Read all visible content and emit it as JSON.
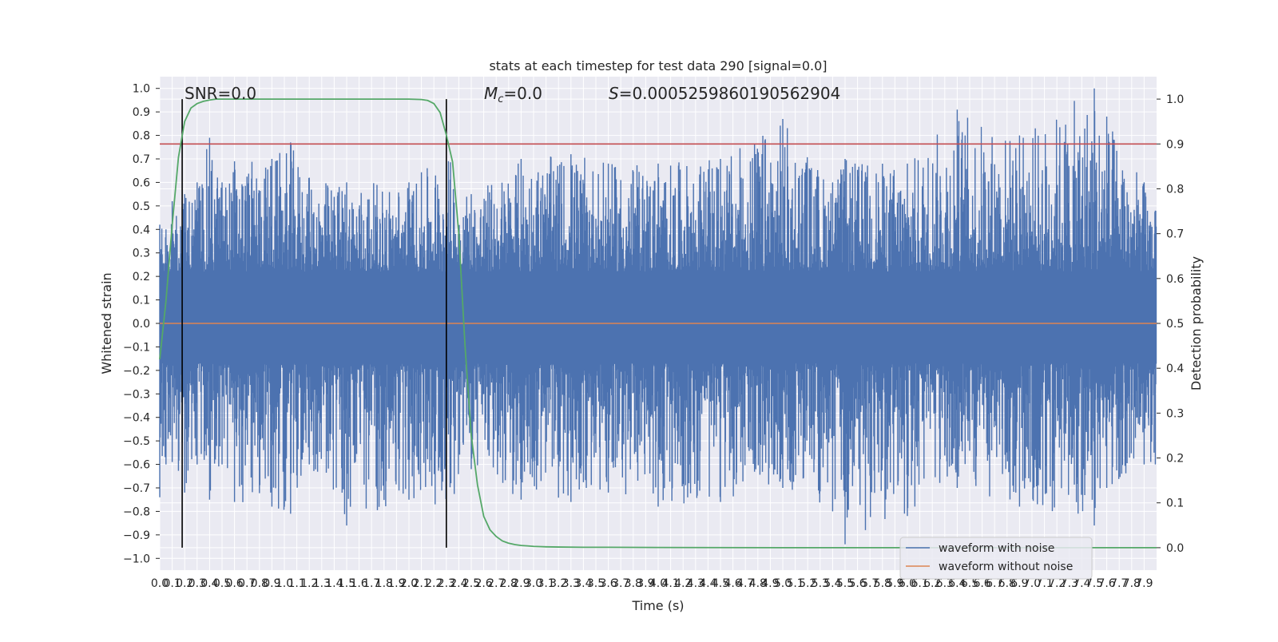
{
  "chart_data": {
    "type": "line",
    "title": "stats at each timestep for test data 290 [signal=0.0]",
    "xlabel": "Time (s)",
    "ylabel": "Whitened strain",
    "ylabel_right": "Detection probability",
    "xlim": [
      0,
      8.0
    ],
    "ylim": [
      -1.05,
      1.05
    ],
    "ylim_right": [
      -0.05,
      1.05
    ],
    "grid": true,
    "legend_position": "lower-right",
    "annotations": {
      "snr": "SNR=0.0",
      "mc_symbol": "M",
      "mc_sub": "c",
      "mc_value": "=0.0",
      "s_symbol": "S",
      "s_value": "=0.0005259860190562904"
    },
    "colors": {
      "noise": "#4c72b0",
      "clean": "#dd8452",
      "prob": "#55a868",
      "threshold": "#c44e52",
      "vline": "#000000"
    },
    "series": [
      {
        "name": "waveform with noise",
        "kind": "noise",
        "envelope": {
          "x": [
            0.0,
            0.05,
            0.1,
            0.2,
            0.3,
            0.4,
            0.5,
            0.6,
            0.9,
            1.05,
            1.2,
            1.5,
            2.0,
            2.3,
            2.5,
            2.9,
            3.3,
            3.6,
            4.0,
            4.5,
            5.0,
            5.4,
            5.5,
            6.0,
            6.4,
            6.9,
            7.5,
            7.6,
            7.9,
            8.0
          ],
          "max": [
            0.42,
            0.4,
            0.52,
            0.55,
            0.6,
            0.79,
            0.6,
            0.69,
            0.7,
            0.77,
            0.62,
            0.6,
            0.6,
            0.73,
            0.55,
            0.7,
            0.72,
            0.68,
            0.68,
            0.7,
            0.87,
            0.6,
            0.7,
            0.68,
            0.91,
            0.8,
            1.0,
            0.88,
            0.6,
            0.48
          ],
          "min": [
            -0.74,
            -0.6,
            -0.59,
            -0.72,
            -0.6,
            -0.75,
            -0.6,
            -0.76,
            -0.78,
            -0.81,
            -0.6,
            -0.86,
            -0.75,
            -0.78,
            -0.62,
            -0.75,
            -0.76,
            -0.72,
            -0.78,
            -0.76,
            -0.7,
            -0.8,
            -0.94,
            -0.82,
            -0.7,
            -0.78,
            -0.86,
            -0.7,
            -0.6,
            -0.6
          ]
        }
      },
      {
        "name": "waveform without noise",
        "kind": "clean",
        "x": [
          0.0,
          8.0
        ],
        "y": [
          0.0,
          0.0
        ]
      },
      {
        "name": "detection probability",
        "kind": "prob",
        "axis": "right",
        "x": [
          0.0,
          0.05,
          0.1,
          0.15,
          0.2,
          0.25,
          0.3,
          0.35,
          0.4,
          0.45,
          0.5,
          0.55,
          0.6,
          0.7,
          0.8,
          1.0,
          1.5,
          2.0,
          2.1,
          2.15,
          2.2,
          2.25,
          2.3,
          2.35,
          2.4,
          2.45,
          2.5,
          2.55,
          2.6,
          2.65,
          2.7,
          2.75,
          2.8,
          2.85,
          2.9,
          2.95,
          3.0,
          3.1,
          3.2,
          3.4,
          3.6,
          4.0,
          5.0,
          6.0,
          7.0,
          8.0
        ],
        "y": [
          0.42,
          0.55,
          0.72,
          0.87,
          0.95,
          0.98,
          0.99,
          0.995,
          0.998,
          1.0,
          1.0,
          1.0,
          1.0,
          1.0,
          1.0,
          1.0,
          1.0,
          1.0,
          0.999,
          0.997,
          0.99,
          0.97,
          0.92,
          0.86,
          0.7,
          0.45,
          0.25,
          0.14,
          0.07,
          0.04,
          0.025,
          0.015,
          0.01,
          0.007,
          0.005,
          0.004,
          0.003,
          0.002,
          0.0015,
          0.001,
          0.001,
          0.0005,
          0.0,
          0.0,
          0.0,
          0.0
        ]
      },
      {
        "name": "threshold",
        "kind": "threshold",
        "axis": "right",
        "x": [
          0.0,
          8.0
        ],
        "y": [
          0.9,
          0.9
        ]
      }
    ],
    "vlines": [
      0.18,
      2.3
    ],
    "vline_range_right": [
      0.0,
      1.0
    ],
    "x_ticks": [
      0.0,
      0.1,
      0.2,
      0.3,
      0.4,
      0.5,
      0.6,
      0.7,
      0.8,
      0.9,
      1.0,
      1.1,
      1.2,
      1.3,
      1.4,
      1.5,
      1.6,
      1.7,
      1.8,
      1.9,
      2.0,
      2.1,
      2.2,
      2.3,
      2.4,
      2.5,
      2.6,
      2.7,
      2.8,
      2.9,
      3.0,
      3.1,
      3.2,
      3.3,
      3.4,
      3.5,
      3.6,
      3.7,
      3.8,
      3.9,
      4.0,
      4.1,
      4.2,
      4.3,
      4.4,
      4.5,
      4.6,
      4.7,
      4.8,
      4.9,
      5.0,
      5.1,
      5.2,
      5.3,
      5.4,
      5.5,
      5.6,
      5.7,
      5.8,
      5.9,
      6.0,
      6.1,
      6.2,
      6.3,
      6.4,
      6.5,
      6.6,
      6.7,
      6.8,
      6.9,
      7.0,
      7.1,
      7.2,
      7.3,
      7.4,
      7.5,
      7.6,
      7.7,
      7.8,
      7.9
    ],
    "x_tick_labels": [
      "0.0",
      "0.1",
      "0.2",
      "0.3",
      "0.4",
      "0.5",
      "0.6",
      "0.7",
      "0.8",
      "0.9",
      "1.0",
      "1.1",
      "1.2",
      "1.3",
      "1.4",
      "1.5",
      "1.6",
      "1.7",
      "1.8",
      "1.9",
      "2.0",
      "2.1",
      "2.2",
      "2.3",
      "2.4",
      "2.5",
      "2.6",
      "2.7",
      "2.8",
      "2.9",
      "3.0",
      "3.1",
      "3.2",
      "3.3",
      "3.4",
      "3.5",
      "3.6",
      "3.7",
      "3.8",
      "3.9",
      "4.0",
      "4.1",
      "4.2",
      "4.3",
      "4.4",
      "4.5",
      "4.6",
      "4.7",
      "4.8",
      "4.9",
      "5.0",
      "5.1",
      "5.2",
      "5.3",
      "5.4",
      "5.5",
      "5.6",
      "5.7",
      "5.8",
      "5.9",
      "6.0",
      "6.1",
      "6.2",
      "6.3",
      "6.4",
      "6.5",
      "6.6",
      "6.7",
      "6.8",
      "6.9",
      "7.0",
      "7.1",
      "7.2",
      "7.3",
      "7.4",
      "7.5",
      "7.6",
      "7.7",
      "7.8",
      "7.9"
    ],
    "y_ticks": [
      1.0,
      0.9,
      0.8,
      0.7,
      0.6,
      0.5,
      0.4,
      0.3,
      0.2,
      0.1,
      0.0,
      -0.1,
      -0.2,
      -0.3,
      -0.4,
      -0.5,
      -0.6,
      -0.7,
      -0.8,
      -0.9,
      -1.0
    ],
    "y_tick_labels": [
      "1.0",
      "0.9",
      "0.8",
      "0.7",
      "0.6",
      "0.5",
      "0.4",
      "0.3",
      "0.2",
      "0.1",
      "0.0",
      "−0.1",
      "−0.2",
      "−0.3",
      "−0.4",
      "−0.5",
      "−0.6",
      "−0.7",
      "−0.8",
      "−0.9",
      "−1.0"
    ],
    "y_right_ticks": [
      1.0,
      0.9,
      0.8,
      0.7,
      0.6,
      0.5,
      0.4,
      0.3,
      0.2,
      0.1,
      0.0
    ],
    "y_right_tick_labels": [
      "1.0",
      "0.9",
      "0.8",
      "0.7",
      "0.6",
      "0.5",
      "0.4",
      "0.3",
      "0.2",
      "0.1",
      "0.0"
    ]
  }
}
